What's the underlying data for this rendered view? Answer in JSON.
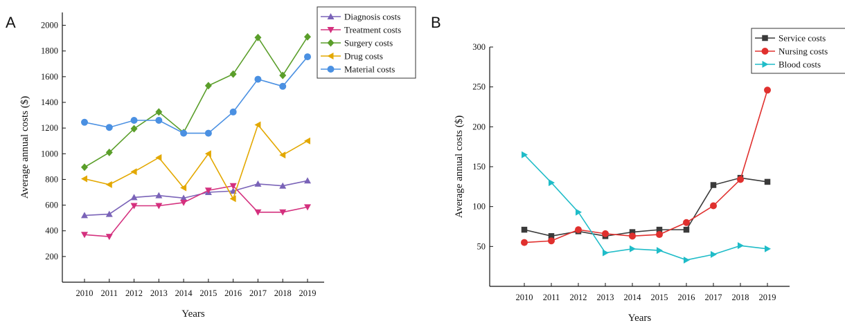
{
  "figure": {
    "letter_a": "A",
    "letter_b": "B"
  },
  "chart_data": [
    {
      "panel": "A",
      "type": "line",
      "xlabel": "Years",
      "ylabel": "Average annual costs ($)",
      "ylim": [
        0,
        2100
      ],
      "yticks": [
        200,
        400,
        600,
        800,
        1000,
        1200,
        1400,
        1600,
        1800,
        2000
      ],
      "grid": false,
      "legend": "top-right",
      "categories": [
        "2010",
        "2011",
        "2012",
        "2013",
        "2014",
        "2015",
        "2016",
        "2017",
        "2018",
        "2019"
      ],
      "series": [
        {
          "name": "Diagnosis costs",
          "color": "#7a63b8",
          "marker": "triangle-up",
          "values": [
            520,
            530,
            660,
            675,
            655,
            700,
            710,
            765,
            750,
            790
          ]
        },
        {
          "name": "Treatment costs",
          "color": "#d4307e",
          "marker": "triangle-down",
          "values": [
            370,
            355,
            595,
            595,
            620,
            715,
            750,
            545,
            545,
            585
          ]
        },
        {
          "name": "Surgery costs",
          "color": "#5a9e2a",
          "marker": "diamond",
          "values": [
            895,
            1010,
            1195,
            1325,
            1165,
            1530,
            1620,
            1905,
            1610,
            1910
          ]
        },
        {
          "name": "Drug costs",
          "color": "#e3a800",
          "marker": "triangle-left",
          "values": [
            805,
            760,
            860,
            970,
            735,
            1000,
            650,
            1225,
            990,
            1100
          ]
        },
        {
          "name": "Material costs",
          "color": "#4a90e2",
          "marker": "circle",
          "values": [
            1245,
            1205,
            1260,
            1260,
            1160,
            1160,
            1325,
            1580,
            1525,
            1755
          ]
        }
      ]
    },
    {
      "panel": "B",
      "type": "line",
      "xlabel": "Years",
      "ylabel": "Average annual costs ($)",
      "ylim": [
        0,
        300
      ],
      "yticks": [
        50,
        100,
        150,
        200,
        250,
        300
      ],
      "grid": false,
      "legend": "top-right",
      "categories": [
        "2010",
        "2011",
        "2012",
        "2013",
        "2014",
        "2015",
        "2016",
        "2017",
        "2018",
        "2019"
      ],
      "series": [
        {
          "name": "Service costs",
          "color": "#3a3a3a",
          "marker": "square",
          "values": [
            71,
            63,
            69,
            63,
            68,
            71,
            71,
            127,
            136,
            131
          ]
        },
        {
          "name": "Nursing costs",
          "color": "#e0302e",
          "marker": "circle",
          "values": [
            55,
            57,
            71,
            66,
            63,
            65,
            80,
            101,
            134,
            246
          ]
        },
        {
          "name": "Blood costs",
          "color": "#1fbcc8",
          "marker": "triangle-right",
          "values": [
            165,
            130,
            93,
            42,
            47,
            45,
            33,
            40,
            51,
            47
          ]
        }
      ]
    }
  ]
}
